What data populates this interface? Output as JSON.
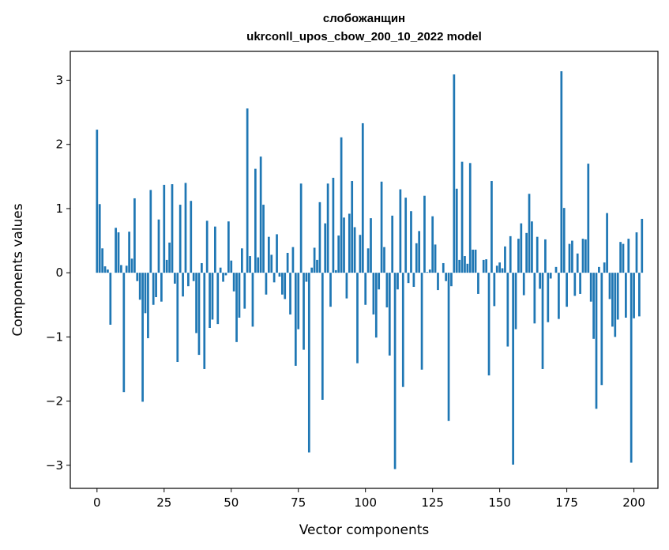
{
  "chart_data": {
    "type": "bar",
    "title": "слобожанщин",
    "subtitle": "ukrconll_upos_cbow_200_10_2022 model",
    "xlabel": "Vector components",
    "ylabel": "Components values",
    "xlim": [
      -9.95,
      208.95
    ],
    "ylim": [
      -3.36,
      3.45
    ],
    "xticks": [
      0,
      25,
      50,
      75,
      100,
      125,
      150,
      175,
      200
    ],
    "yticks": [
      -3,
      -2,
      -1,
      0,
      1,
      2,
      3
    ],
    "ytick_labels": [
      "−3",
      "−2",
      "−1",
      "0",
      "1",
      "2",
      "3"
    ],
    "grid": false,
    "bar_color": "#1f77b4",
    "values": [
      2.23,
      1.07,
      0.38,
      0.1,
      0.05,
      -0.81,
      0.0,
      0.7,
      0.63,
      0.12,
      -1.86,
      0.11,
      0.64,
      0.22,
      1.16,
      -0.13,
      -0.42,
      -2.01,
      -0.63,
      -1.02,
      1.29,
      -0.5,
      -0.38,
      0.83,
      -0.45,
      1.37,
      0.2,
      0.47,
      1.38,
      -0.17,
      -1.39,
      1.06,
      -0.37,
      1.4,
      -0.21,
      1.12,
      -0.13,
      -0.94,
      -1.28,
      0.15,
      -1.5,
      0.81,
      -0.86,
      -0.73,
      0.72,
      -0.8,
      0.08,
      -0.14,
      -0.04,
      0.8,
      0.19,
      -0.29,
      -1.08,
      -0.7,
      0.38,
      -0.56,
      2.56,
      0.26,
      -0.84,
      1.62,
      0.24,
      1.81,
      1.06,
      -0.34,
      0.56,
      0.28,
      -0.15,
      0.6,
      -0.06,
      -0.34,
      -0.41,
      0.31,
      -0.65,
      0.4,
      -1.45,
      -0.88,
      1.39,
      -1.2,
      -0.14,
      -2.8,
      0.08,
      0.39,
      0.2,
      1.1,
      -1.98,
      0.77,
      1.39,
      -0.53,
      1.48,
      0.04,
      0.58,
      2.11,
      0.86,
      -0.4,
      0.92,
      1.43,
      0.71,
      -1.41,
      0.59,
      2.33,
      -0.5,
      0.38,
      0.85,
      -0.65,
      -1.01,
      -0.26,
      1.42,
      0.4,
      -0.54,
      -1.29,
      0.89,
      -3.06,
      -0.26,
      1.3,
      -1.78,
      1.17,
      -0.16,
      0.96,
      -0.22,
      0.46,
      0.65,
      -1.51,
      1.2,
      0.01,
      0.05,
      0.88,
      0.44,
      -0.27,
      0.0,
      0.15,
      -0.13,
      -2.31,
      -0.21,
      3.09,
      1.31,
      0.2,
      1.73,
      0.26,
      0.14,
      1.71,
      0.36,
      0.36,
      -0.33,
      0.0,
      0.2,
      0.21,
      -1.6,
      1.43,
      -0.52,
      0.11,
      0.16,
      0.07,
      0.41,
      -1.15,
      0.57,
      -2.99,
      -0.88,
      0.53,
      0.77,
      -0.35,
      0.62,
      1.23,
      0.8,
      -0.79,
      0.56,
      -0.25,
      -1.5,
      0.52,
      -0.77,
      -0.09,
      0.0,
      0.09,
      -0.72,
      3.14,
      1.01,
      -0.53,
      0.45,
      0.5,
      -0.36,
      0.3,
      -0.33,
      0.53,
      0.52,
      1.7,
      -0.45,
      -1.03,
      -2.12,
      0.09,
      -1.75,
      0.16,
      0.93,
      -0.41,
      -0.84,
      -1.0,
      -0.73,
      0.48,
      0.45,
      -0.7,
      0.53,
      -2.96,
      -0.71,
      0.63,
      -0.68,
      0.84
    ]
  }
}
